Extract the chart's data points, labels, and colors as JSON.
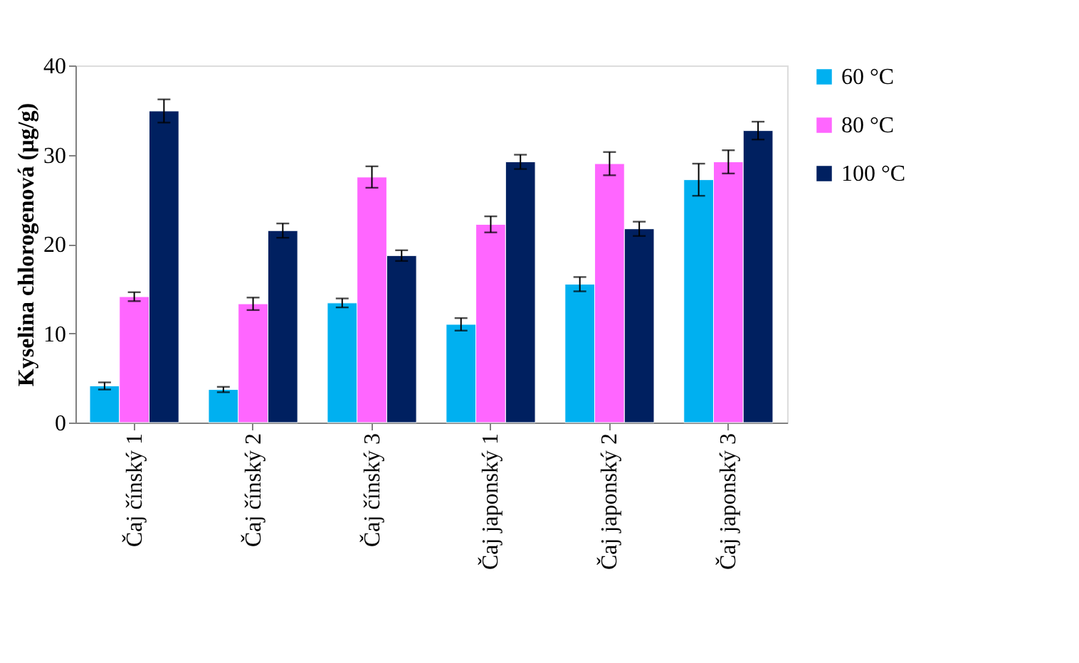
{
  "chart_data": {
    "type": "bar",
    "ylabel": "Kyselina chlorogenová (µg/g)",
    "categories": [
      "Čaj čínský 1",
      "Čaj čínský 2",
      "Čaj čínský 3",
      "Čaj japonský 1",
      "Čaj japonský 2",
      "Čaj japonský 3"
    ],
    "series": [
      {
        "name": "60 °C",
        "color": "#00b0f0",
        "values": [
          4.1,
          3.7,
          13.4,
          11.0,
          15.5,
          27.2
        ],
        "errors": [
          0.4,
          0.3,
          0.5,
          0.7,
          0.8,
          1.8
        ]
      },
      {
        "name": "80 °C",
        "color": "#ff66ff",
        "values": [
          14.1,
          13.3,
          27.5,
          22.2,
          29.0,
          29.2
        ],
        "errors": [
          0.5,
          0.7,
          1.2,
          0.9,
          1.3,
          1.3
        ]
      },
      {
        "name": "100 °C",
        "color": "#002060",
        "values": [
          34.9,
          21.5,
          18.7,
          29.2,
          21.7,
          32.7
        ],
        "errors": [
          1.3,
          0.8,
          0.6,
          0.8,
          0.8,
          1.0
        ]
      }
    ],
    "ylim": [
      0,
      40
    ],
    "yticks": [
      0,
      10,
      20,
      30,
      40
    ],
    "grid": false,
    "legend": "right"
  }
}
